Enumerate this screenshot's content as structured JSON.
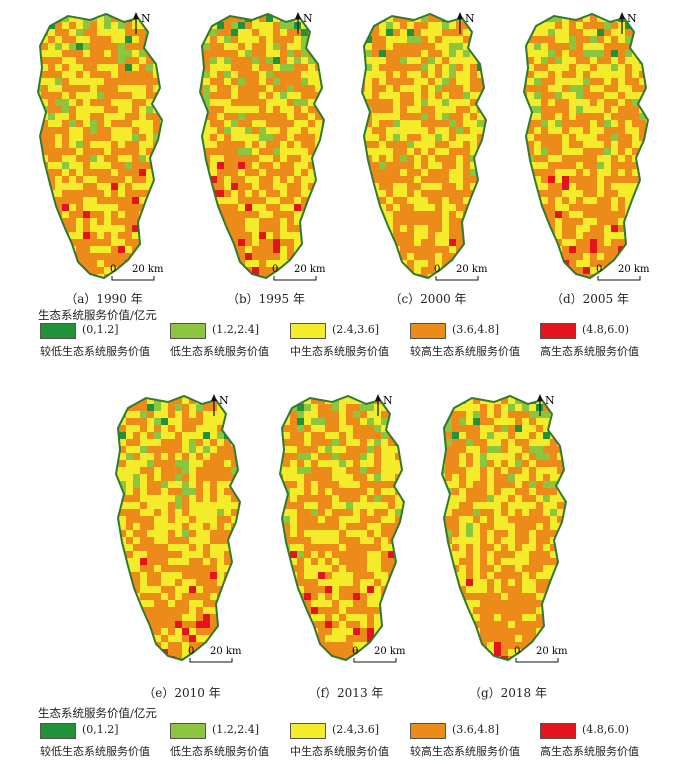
{
  "panels_top": [
    {
      "label": "（a）1990 年",
      "seed": 3,
      "hot": 0.35
    },
    {
      "label": "（b）1995 年",
      "seed": 11,
      "hot": 0.55
    },
    {
      "label": "（c）2000 年",
      "seed": 19,
      "hot": 0.15
    },
    {
      "label": "（d）2005 年",
      "seed": 27,
      "hot": 0.4
    }
  ],
  "panels_bottom": [
    {
      "label": "（e）2010 年",
      "seed": 35,
      "hot": 0.2
    },
    {
      "label": "（f）2013 年",
      "seed": 43,
      "hot": 0.25
    },
    {
      "label": "（g）2018 年",
      "seed": 51,
      "hot": 0.18
    }
  ],
  "north_label": "N",
  "scale": {
    "zero": "0",
    "dist": "20 km"
  },
  "legend": {
    "title_top": "生态系统服务价值/亿元",
    "title_bottom": "生态系统服务价值/亿元",
    "items": [
      {
        "range": "(0,1.2]",
        "name": "较低生态系统服务价值",
        "color": "#22923a"
      },
      {
        "range": "(1.2,2.4]",
        "name": "低生态系统服务价值",
        "color": "#8cc63f"
      },
      {
        "range": "(2.4,3.6]",
        "name": "中生态系统服务价值",
        "color": "#f4ec2a"
      },
      {
        "range": "(3.6,4.8]",
        "name": "较高生态系统服务价值",
        "color": "#ec8a1a"
      },
      {
        "range": "(4.8,6.0)",
        "name": "高生态系统服务价值",
        "color": "#e3141b"
      }
    ],
    "items_bottom_ranges": [
      "(0,1.2]",
      "(1.2,2.4]",
      "(2.4,3.6]",
      "(3.6,4.8]",
      "(4.8,6.0)"
    ]
  }
}
